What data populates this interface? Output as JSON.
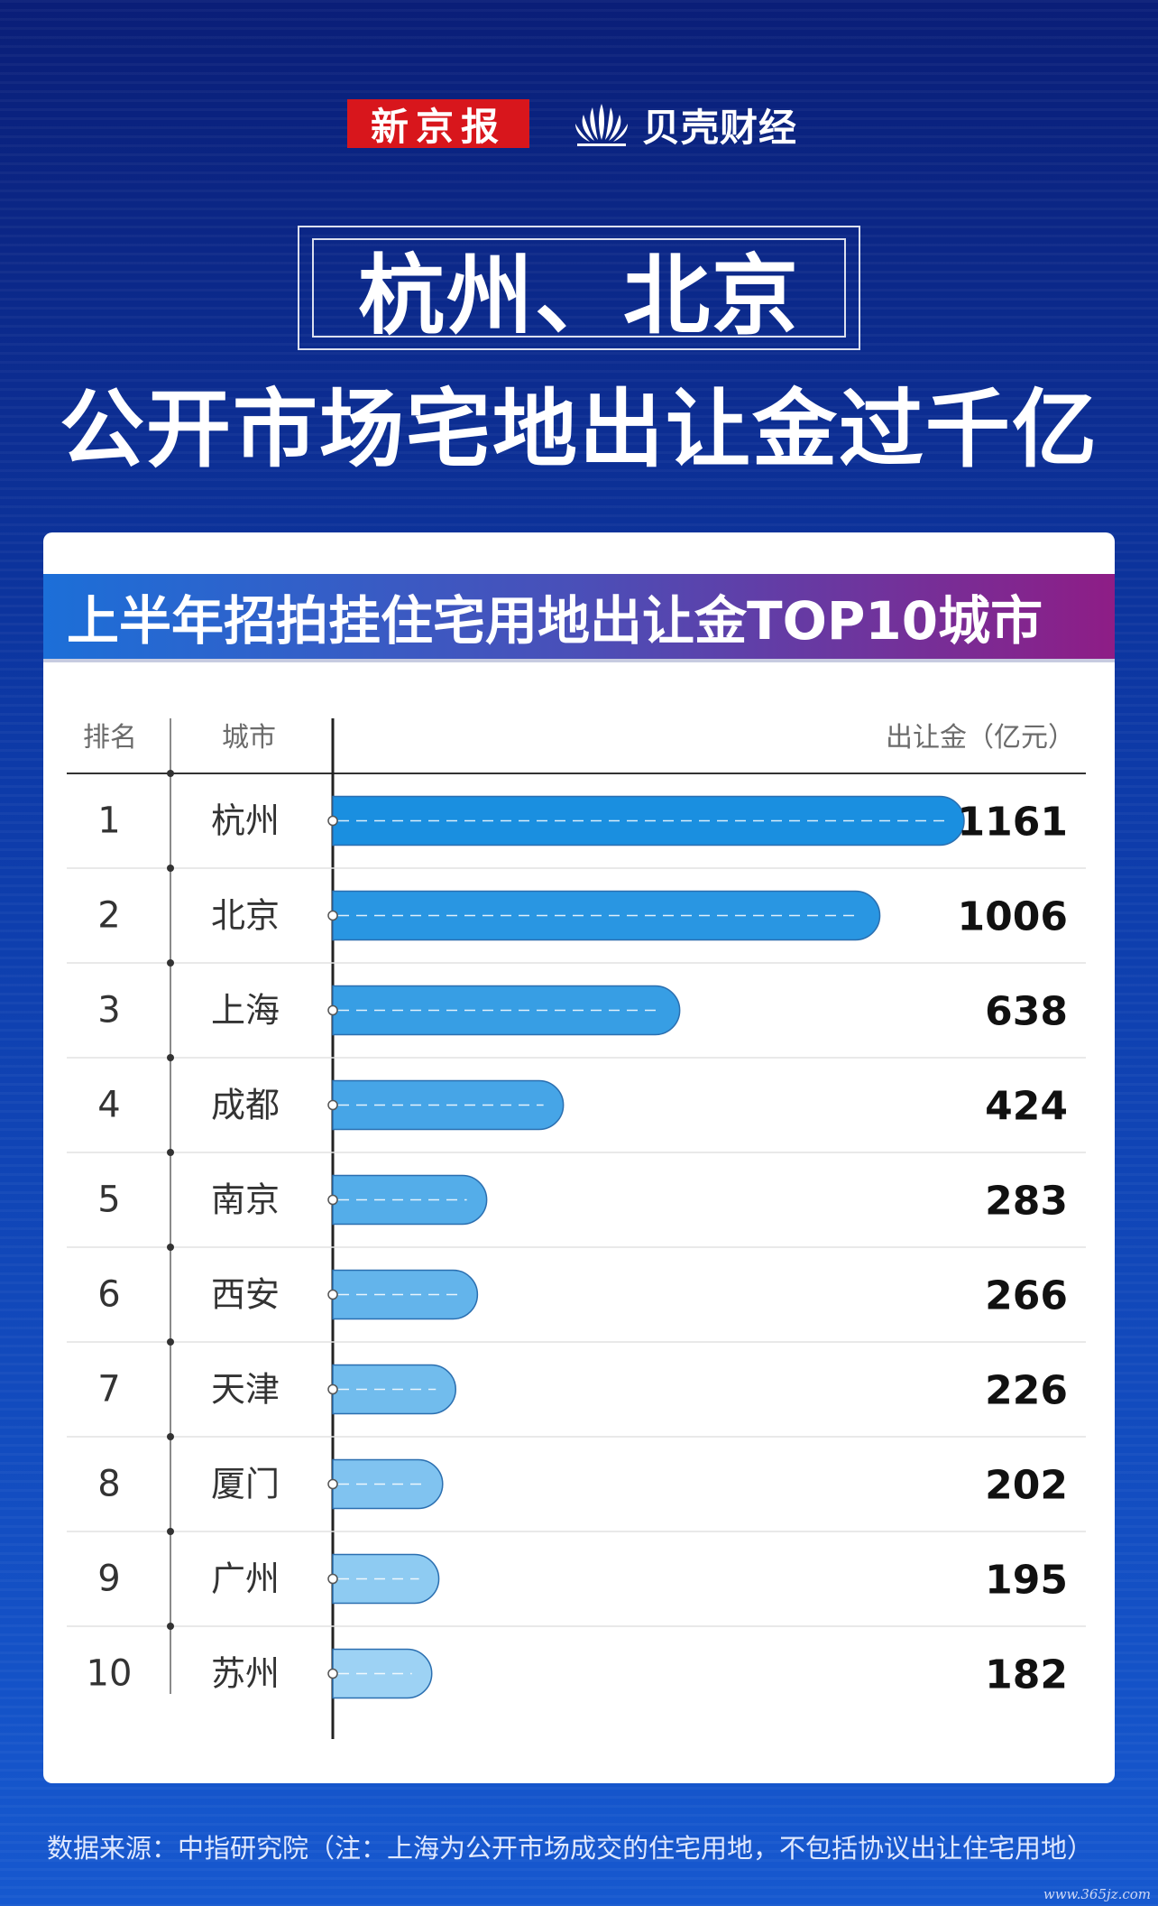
{
  "brand": {
    "logo1": "新京报",
    "logo2": "贝壳财经"
  },
  "title": {
    "line1": "杭州、北京",
    "line2": "公开市场宅地出让金过千亿"
  },
  "chart_data": {
    "type": "bar",
    "title": "上半年招拍挂住宅用地出让金TOP10城市",
    "column_headers": {
      "rank": "排名",
      "city": "城市",
      "value": "出让金（亿元）"
    },
    "ranks": [
      "1",
      "2",
      "3",
      "4",
      "5",
      "6",
      "7",
      "8",
      "9",
      "10"
    ],
    "categories": [
      "杭州",
      "北京",
      "上海",
      "成都",
      "南京",
      "西安",
      "天津",
      "厦门",
      "广州",
      "苏州"
    ],
    "values": [
      1161,
      1006,
      638,
      424,
      283,
      266,
      226,
      202,
      195,
      182
    ],
    "unit": "亿元",
    "orientation": "horizontal"
  },
  "colors": {
    "bar_dark": "#1a8fe0",
    "bar_light": "#9dd2f4",
    "title_gradient_start": "#1c6fd8",
    "title_gradient_end": "#8e1d86"
  },
  "footer": "数据来源：中指研究院（注：上海为公开市场成交的住宅用地，不包括协议出让住宅用地）",
  "watermark": "www.365jz.com"
}
